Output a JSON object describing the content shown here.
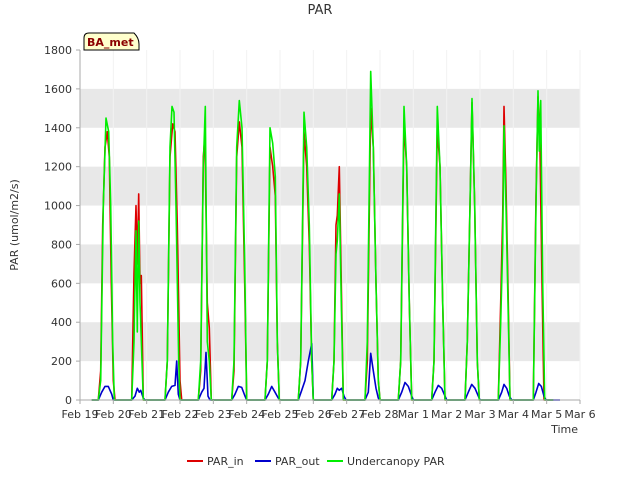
{
  "chart_data": {
    "type": "line",
    "title": "PAR",
    "xlabel": "Time",
    "ylabel": "PAR (umol/m2/s)",
    "ylim": [
      0,
      1800
    ],
    "yticks": [
      0,
      200,
      400,
      600,
      800,
      1000,
      1200,
      1400,
      1600,
      1800
    ],
    "xlim": [
      0,
      15
    ],
    "xticks": [
      "Feb 19",
      "Feb 20",
      "Feb 21",
      "Feb 22",
      "Feb 23",
      "Feb 24",
      "Feb 25",
      "Feb 26",
      "Feb 27",
      "Feb 28",
      "Mar 1",
      "Mar 2",
      "Mar 3",
      "Mar 4",
      "Mar 5",
      "Mar 6"
    ],
    "badge": "BA_met",
    "legend_position": "bottom-center",
    "colors": {
      "PAR_in": "#dd0000",
      "PAR_out": "#0000cc",
      "Undercanopy PAR": "#00ee00",
      "band": "#e8e8e8",
      "grid": "#ffffff",
      "badge_bg": "#ffffcc"
    },
    "series": [
      {
        "name": "PAR_in",
        "daily_peak_approx": [
          1380,
          1060,
          1420,
          1360,
          1430,
          1300,
          1380,
          1200,
          1500,
          1420,
          1400,
          1530,
          1510,
          1560
        ],
        "points": [
          [
            0.35,
            0
          ],
          [
            0.55,
            0
          ],
          [
            0.62,
            150
          ],
          [
            0.68,
            900
          ],
          [
            0.75,
            1300
          ],
          [
            0.82,
            1380
          ],
          [
            0.88,
            1250
          ],
          [
            0.94,
            600
          ],
          [
            1.0,
            100
          ],
          [
            1.05,
            0
          ],
          [
            1.55,
            0
          ],
          [
            1.62,
            650
          ],
          [
            1.68,
            1000
          ],
          [
            1.72,
            700
          ],
          [
            1.76,
            1060
          ],
          [
            1.8,
            600
          ],
          [
            1.84,
            640
          ],
          [
            1.9,
            0
          ],
          [
            2.55,
            0
          ],
          [
            2.62,
            200
          ],
          [
            2.7,
            1250
          ],
          [
            2.78,
            1420
          ],
          [
            2.85,
            1380
          ],
          [
            2.92,
            900
          ],
          [
            3.0,
            100
          ],
          [
            3.05,
            0
          ],
          [
            3.55,
            0
          ],
          [
            3.62,
            150
          ],
          [
            3.7,
            1250
          ],
          [
            3.75,
            1360
          ],
          [
            3.82,
            500
          ],
          [
            3.88,
            370
          ],
          [
            3.94,
            0
          ],
          [
            4.55,
            0
          ],
          [
            4.62,
            150
          ],
          [
            4.7,
            1250
          ],
          [
            4.78,
            1430
          ],
          [
            4.86,
            1300
          ],
          [
            4.94,
            600
          ],
          [
            5.0,
            0
          ],
          [
            5.55,
            0
          ],
          [
            5.62,
            200
          ],
          [
            5.7,
            1300
          ],
          [
            5.78,
            1200
          ],
          [
            5.86,
            1050
          ],
          [
            5.92,
            300
          ],
          [
            5.98,
            0
          ],
          [
            6.55,
            0
          ],
          [
            6.62,
            200
          ],
          [
            6.72,
            1380
          ],
          [
            6.8,
            1200
          ],
          [
            6.88,
            800
          ],
          [
            6.95,
            200
          ],
          [
            7.0,
            0
          ],
          [
            7.55,
            0
          ],
          [
            7.62,
            200
          ],
          [
            7.68,
            900
          ],
          [
            7.72,
            950
          ],
          [
            7.78,
            1200
          ],
          [
            7.84,
            600
          ],
          [
            7.9,
            0
          ],
          [
            8.55,
            0
          ],
          [
            8.62,
            200
          ],
          [
            8.72,
            1500
          ],
          [
            8.8,
            1300
          ],
          [
            8.88,
            600
          ],
          [
            8.95,
            100
          ],
          [
            9.0,
            0
          ],
          [
            9.55,
            0
          ],
          [
            9.62,
            200
          ],
          [
            9.72,
            1420
          ],
          [
            9.8,
            1200
          ],
          [
            9.88,
            500
          ],
          [
            9.95,
            0
          ],
          [
            10.55,
            0
          ],
          [
            10.62,
            200
          ],
          [
            10.72,
            1400
          ],
          [
            10.8,
            1200
          ],
          [
            10.88,
            500
          ],
          [
            10.95,
            0
          ],
          [
            11.55,
            0
          ],
          [
            11.62,
            300
          ],
          [
            11.7,
            1000
          ],
          [
            11.76,
            1530
          ],
          [
            11.84,
            1000
          ],
          [
            11.92,
            200
          ],
          [
            11.98,
            0
          ],
          [
            12.55,
            0
          ],
          [
            12.62,
            500
          ],
          [
            12.68,
            950
          ],
          [
            12.72,
            1510
          ],
          [
            12.78,
            1100
          ],
          [
            12.84,
            580
          ],
          [
            12.9,
            0
          ],
          [
            13.6,
            0
          ],
          [
            13.68,
            1050
          ],
          [
            13.74,
            1560
          ],
          [
            13.8,
            1300
          ],
          [
            13.86,
            600
          ],
          [
            13.92,
            0
          ],
          [
            14.2,
            0
          ]
        ]
      },
      {
        "name": "PAR_out",
        "daily_peak_approx": [
          75,
          60,
          200,
          245,
          75,
          70,
          290,
          60,
          240,
          90,
          75,
          80,
          80,
          85
        ],
        "points": [
          [
            0.35,
            0
          ],
          [
            0.55,
            0
          ],
          [
            0.65,
            40
          ],
          [
            0.75,
            70
          ],
          [
            0.85,
            70
          ],
          [
            0.95,
            30
          ],
          [
            1.0,
            0
          ],
          [
            1.55,
            0
          ],
          [
            1.65,
            20
          ],
          [
            1.72,
            60
          ],
          [
            1.78,
            40
          ],
          [
            1.82,
            50
          ],
          [
            1.9,
            10
          ],
          [
            1.95,
            0
          ],
          [
            2.55,
            0
          ],
          [
            2.65,
            40
          ],
          [
            2.75,
            70
          ],
          [
            2.85,
            75
          ],
          [
            2.9,
            200
          ],
          [
            2.95,
            30
          ],
          [
            3.0,
            0
          ],
          [
            3.55,
            0
          ],
          [
            3.65,
            40
          ],
          [
            3.72,
            60
          ],
          [
            3.78,
            245
          ],
          [
            3.84,
            20
          ],
          [
            3.9,
            0
          ],
          [
            4.55,
            0
          ],
          [
            4.65,
            30
          ],
          [
            4.75,
            70
          ],
          [
            4.85,
            65
          ],
          [
            4.95,
            20
          ],
          [
            5.0,
            0
          ],
          [
            5.55,
            0
          ],
          [
            5.65,
            30
          ],
          [
            5.75,
            70
          ],
          [
            5.85,
            40
          ],
          [
            5.95,
            10
          ],
          [
            6.0,
            0
          ],
          [
            6.55,
            0
          ],
          [
            6.65,
            50
          ],
          [
            6.75,
            100
          ],
          [
            6.85,
            200
          ],
          [
            6.95,
            290
          ],
          [
            7.0,
            0
          ],
          [
            7.55,
            0
          ],
          [
            7.65,
            30
          ],
          [
            7.72,
            60
          ],
          [
            7.78,
            50
          ],
          [
            7.85,
            60
          ],
          [
            7.92,
            20
          ],
          [
            7.98,
            0
          ],
          [
            8.55,
            0
          ],
          [
            8.65,
            40
          ],
          [
            8.72,
            240
          ],
          [
            8.8,
            150
          ],
          [
            8.88,
            60
          ],
          [
            8.95,
            10
          ],
          [
            9.0,
            0
          ],
          [
            9.55,
            0
          ],
          [
            9.65,
            40
          ],
          [
            9.75,
            90
          ],
          [
            9.85,
            70
          ],
          [
            9.95,
            20
          ],
          [
            10.0,
            0
          ],
          [
            10.55,
            0
          ],
          [
            10.65,
            40
          ],
          [
            10.75,
            75
          ],
          [
            10.85,
            60
          ],
          [
            10.95,
            20
          ],
          [
            11.0,
            0
          ],
          [
            11.55,
            0
          ],
          [
            11.65,
            40
          ],
          [
            11.75,
            80
          ],
          [
            11.85,
            60
          ],
          [
            11.95,
            20
          ],
          [
            12.0,
            0
          ],
          [
            12.55,
            0
          ],
          [
            12.65,
            40
          ],
          [
            12.72,
            80
          ],
          [
            12.8,
            60
          ],
          [
            12.88,
            20
          ],
          [
            12.95,
            0
          ],
          [
            13.6,
            0
          ],
          [
            13.68,
            40
          ],
          [
            13.76,
            85
          ],
          [
            13.84,
            70
          ],
          [
            13.92,
            20
          ],
          [
            13.98,
            0
          ],
          [
            14.4,
            0
          ]
        ]
      },
      {
        "name": "Undercanopy PAR",
        "daily_peak_approx": [
          1450,
          920,
          1510,
          1510,
          1540,
          1400,
          1480,
          1060,
          1690,
          1510,
          1510,
          1550,
          1410,
          1590
        ],
        "points": [
          [
            0.35,
            0
          ],
          [
            0.55,
            0
          ],
          [
            0.62,
            100
          ],
          [
            0.7,
            1000
          ],
          [
            0.78,
            1450
          ],
          [
            0.86,
            1380
          ],
          [
            0.92,
            1000
          ],
          [
            0.98,
            300
          ],
          [
            1.03,
            0
          ],
          [
            1.55,
            0
          ],
          [
            1.62,
            300
          ],
          [
            1.68,
            870
          ],
          [
            1.72,
            350
          ],
          [
            1.76,
            920
          ],
          [
            1.8,
            500
          ],
          [
            1.86,
            200
          ],
          [
            1.9,
            0
          ],
          [
            2.55,
            0
          ],
          [
            2.62,
            200
          ],
          [
            2.7,
            1300
          ],
          [
            2.76,
            1510
          ],
          [
            2.82,
            1480
          ],
          [
            2.88,
            1000
          ],
          [
            2.96,
            200
          ],
          [
            3.0,
            0
          ],
          [
            3.55,
            0
          ],
          [
            3.62,
            200
          ],
          [
            3.7,
            1200
          ],
          [
            3.76,
            1510
          ],
          [
            3.82,
            300
          ],
          [
            3.88,
            200
          ],
          [
            3.94,
            0
          ],
          [
            4.55,
            0
          ],
          [
            4.62,
            200
          ],
          [
            4.7,
            1300
          ],
          [
            4.78,
            1540
          ],
          [
            4.86,
            1400
          ],
          [
            4.94,
            700
          ],
          [
            5.0,
            0
          ],
          [
            5.55,
            0
          ],
          [
            5.62,
            200
          ],
          [
            5.7,
            1400
          ],
          [
            5.78,
            1320
          ],
          [
            5.86,
            1150
          ],
          [
            5.92,
            300
          ],
          [
            5.98,
            0
          ],
          [
            6.55,
            0
          ],
          [
            6.62,
            200
          ],
          [
            6.72,
            1480
          ],
          [
            6.8,
            1300
          ],
          [
            6.88,
            900
          ],
          [
            6.95,
            200
          ],
          [
            7.0,
            0
          ],
          [
            7.55,
            0
          ],
          [
            7.62,
            200
          ],
          [
            7.68,
            750
          ],
          [
            7.72,
            820
          ],
          [
            7.78,
            1060
          ],
          [
            7.84,
            500
          ],
          [
            7.9,
            0
          ],
          [
            8.55,
            0
          ],
          [
            8.62,
            300
          ],
          [
            8.72,
            1690
          ],
          [
            8.8,
            1300
          ],
          [
            8.88,
            600
          ],
          [
            8.95,
            100
          ],
          [
            9.0,
            0
          ],
          [
            9.55,
            0
          ],
          [
            9.62,
            200
          ],
          [
            9.72,
            1510
          ],
          [
            9.8,
            1200
          ],
          [
            9.88,
            500
          ],
          [
            9.95,
            0
          ],
          [
            10.55,
            0
          ],
          [
            10.62,
            200
          ],
          [
            10.72,
            1510
          ],
          [
            10.8,
            1200
          ],
          [
            10.88,
            500
          ],
          [
            10.95,
            0
          ],
          [
            11.55,
            0
          ],
          [
            11.62,
            300
          ],
          [
            11.7,
            1000
          ],
          [
            11.76,
            1550
          ],
          [
            11.84,
            1000
          ],
          [
            11.92,
            200
          ],
          [
            11.98,
            0
          ],
          [
            12.55,
            0
          ],
          [
            12.62,
            400
          ],
          [
            12.68,
            800
          ],
          [
            12.72,
            1410
          ],
          [
            12.78,
            1000
          ],
          [
            12.84,
            500
          ],
          [
            12.9,
            0
          ],
          [
            13.6,
            0
          ],
          [
            13.68,
            1000
          ],
          [
            13.74,
            1590
          ],
          [
            13.78,
            1280
          ],
          [
            13.82,
            1540
          ],
          [
            13.88,
            600
          ],
          [
            13.94,
            0
          ],
          [
            14.2,
            0
          ]
        ]
      }
    ]
  }
}
